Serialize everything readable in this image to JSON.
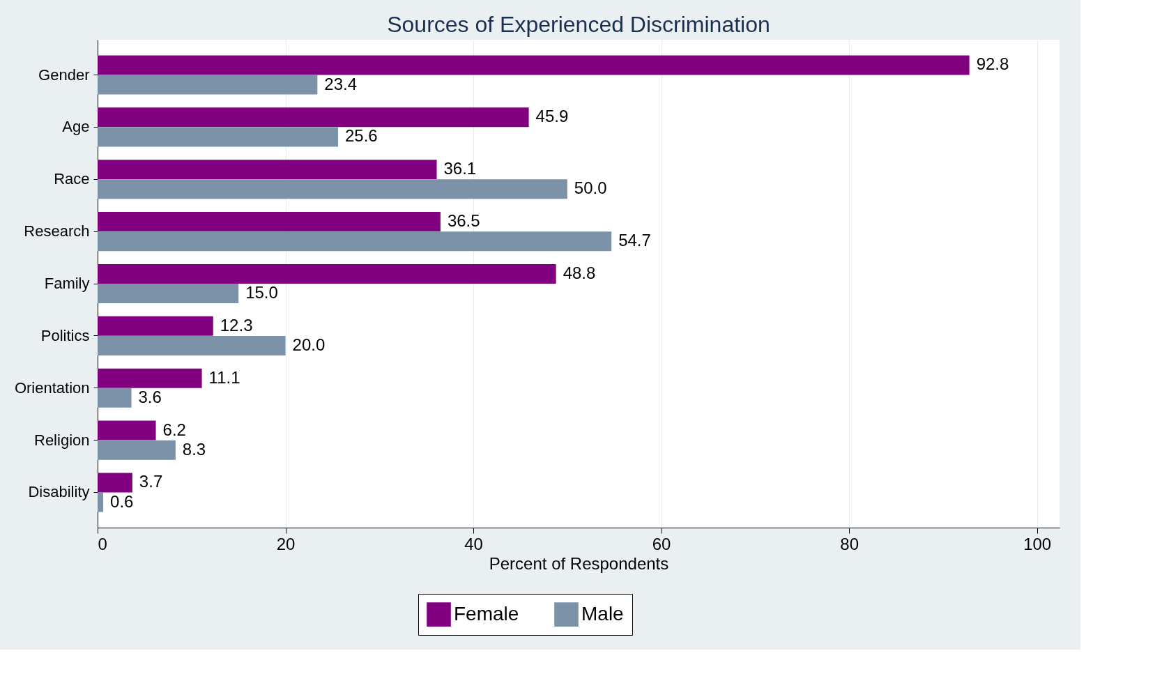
{
  "chart_data": {
    "type": "bar",
    "orientation": "horizontal",
    "title": "Sources of Experienced Discrimination",
    "xlabel": "Percent of Respondents",
    "categories": [
      "Gender",
      "Age",
      "Race",
      "Research",
      "Family",
      "Politics",
      "Orientation",
      "Religion",
      "Disability"
    ],
    "series": [
      {
        "name": "Female",
        "color": "#800080",
        "values": [
          92.8,
          45.9,
          36.1,
          36.5,
          48.8,
          12.3,
          11.1,
          6.2,
          3.7
        ],
        "value_labels": [
          "92.8",
          "45.9",
          "36.1",
          "36.5",
          "48.8",
          "12.3",
          "11.1",
          "6.2",
          "3.7"
        ]
      },
      {
        "name": "Male",
        "color": "#7b92a8",
        "values": [
          23.4,
          25.6,
          50.0,
          54.7,
          15.0,
          20.0,
          3.6,
          8.3,
          0.6
        ],
        "value_labels": [
          "23.4",
          "25.6",
          "50.0",
          "54.7",
          "15.0",
          "20.0",
          "3.6",
          "8.3",
          "0.6"
        ]
      }
    ],
    "xlim": [
      0,
      102.4
    ],
    "xticks": [
      0,
      20,
      40,
      60,
      80,
      100
    ],
    "grid": "x",
    "legend": "bottom"
  }
}
